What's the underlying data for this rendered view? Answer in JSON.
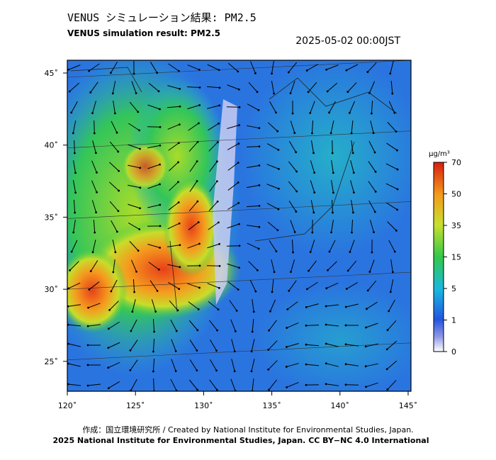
{
  "header": {
    "title": "VENUS シミュレーション結果: PM2.5",
    "subtitle": "VENUS simulation result: PM2.5",
    "timestamp": "2025-05-02 00:00JST"
  },
  "map": {
    "lat_labels": [
      "45˚",
      "40˚",
      "35˚",
      "30˚",
      "25˚"
    ],
    "lon_labels": [
      "120˚",
      "125˚",
      "130˚",
      "135˚",
      "140˚",
      "145˚"
    ]
  },
  "colorbar": {
    "unit": "μg/m³",
    "ticks": [
      0,
      1,
      5,
      15,
      35,
      50,
      70
    ]
  },
  "footer": {
    "credit": "作成：国立環境研究所 / Created by National Institute for Environmental Studies, Japan.",
    "copyright": "2025 National Institute for Environmental Studies, Japan. CC BY−NC 4.0 International"
  }
}
